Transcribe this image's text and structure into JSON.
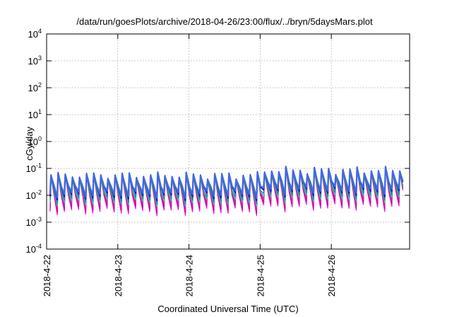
{
  "chart_data": {
    "type": "line",
    "title": "/data/run/goesPlots/archive/2018-04-26/23:00/flux/../bryn/5daysMars.plot",
    "xlabel": "Coordinated Universal Time (UTC)",
    "ylabel": "cGy/day",
    "y_scale": "log",
    "ylim": [
      0.0001,
      10000
    ],
    "xlim_days": [
      0,
      5.1
    ],
    "y_ticks": [
      {
        "value": 0.0001,
        "base": "10",
        "exp": "-4"
      },
      {
        "value": 0.001,
        "base": "10",
        "exp": "-3"
      },
      {
        "value": 0.01,
        "base": "10",
        "exp": "-2"
      },
      {
        "value": 0.1,
        "base": "10",
        "exp": "-1"
      },
      {
        "value": 1,
        "base": "10",
        "exp": "0"
      },
      {
        "value": 10,
        "base": "10",
        "exp": "1"
      },
      {
        "value": 100,
        "base": "10",
        "exp": "2"
      },
      {
        "value": 1000,
        "base": "10",
        "exp": "3"
      },
      {
        "value": 10000,
        "base": "10",
        "exp": "4"
      }
    ],
    "x_ticks": [
      {
        "day": 0,
        "label": "2018-4-22"
      },
      {
        "day": 1,
        "label": "2018-4-23"
      },
      {
        "day": 2,
        "label": "2018-4-24"
      },
      {
        "day": 3,
        "label": "2018-4-25"
      },
      {
        "day": 4,
        "label": "2018-4-26"
      }
    ],
    "grid": true,
    "legend": "none",
    "pattern": {
      "kind": "sawtooth",
      "period_days": 0.1,
      "start_day": 0.05,
      "n_cycles": 50,
      "peak_base": 0.055,
      "peak_late": 0.085,
      "trough_base": 0.0035,
      "trough_late": 0.005
    },
    "series": [
      {
        "color": "#ff00ff",
        "width": 1.3,
        "peak_scale": 0.93,
        "trough_scale": 0.72
      },
      {
        "color": "#a0208a",
        "width": 1.3,
        "peak_scale": 0.97,
        "trough_scale": 0.9
      },
      {
        "color": "#ff1493",
        "width": 1.3,
        "peak_scale": 1.0,
        "trough_scale": 1.18
      },
      {
        "color": "#00d8d8",
        "width": 1.3,
        "peak_scale": 0.85,
        "trough_scale": 1.55
      },
      {
        "color": "#2e8b57",
        "width": 1.3,
        "peak_scale": 0.8,
        "trough_scale": 1.95
      },
      {
        "color": "#0000ff",
        "width": 1.6,
        "peak_scale": 1.05,
        "trough_scale": 2.6
      },
      {
        "color": "#4169e1",
        "width": 2.4,
        "peak_scale": 0.98,
        "trough_scale": 3.2
      }
    ]
  }
}
